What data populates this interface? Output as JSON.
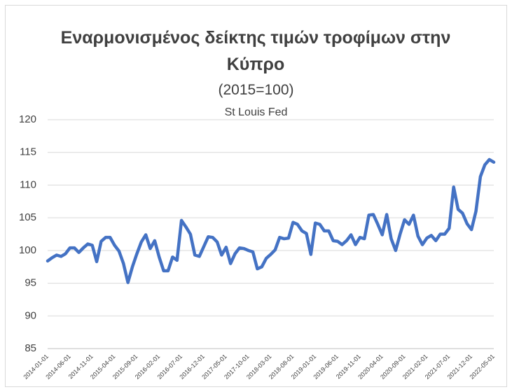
{
  "chart_data": {
    "type": "line",
    "title": "Εναρμονισμένος δείκτης τιμών τροφίμων στην Κύπρο",
    "subtitle": "(2015=100)",
    "source": "St Louis Fed",
    "categories": [
      "2014-01-01",
      null,
      null,
      null,
      null,
      "2014-06-01",
      null,
      null,
      null,
      null,
      "2014-11-01",
      null,
      null,
      null,
      null,
      "2015-04-01",
      null,
      null,
      null,
      null,
      "2015-09-01",
      null,
      null,
      null,
      null,
      "2016-02-01",
      null,
      null,
      null,
      null,
      "2016-07-01",
      null,
      null,
      null,
      null,
      "2016-12-01",
      null,
      null,
      null,
      null,
      "2017-05-01",
      null,
      null,
      null,
      null,
      "2017-10-01",
      null,
      null,
      null,
      null,
      "2018-03-01",
      null,
      null,
      null,
      null,
      "2018-08-01",
      null,
      null,
      null,
      null,
      "2019-01-01",
      null,
      null,
      null,
      null,
      "2019-06-01",
      null,
      null,
      null,
      null,
      "2019-11-01",
      null,
      null,
      null,
      null,
      "2020-04-01",
      null,
      null,
      null,
      null,
      "2020-09-01",
      null,
      null,
      null,
      null,
      "2021-02-01",
      null,
      null,
      null,
      null,
      "2021-07-01",
      null,
      null,
      null,
      null,
      "2021-12-01",
      null,
      null,
      null,
      null,
      "2022-05-01"
    ],
    "series": [
      {
        "color": "#4472c4",
        "values": [
          98.4,
          98.9,
          99.3,
          99.1,
          99.5,
          100.4,
          100.4,
          99.7,
          100.4,
          101.0,
          100.8,
          98.3,
          101.4,
          102.0,
          102.0,
          100.8,
          99.9,
          98.0,
          95.1,
          97.5,
          99.5,
          101.3,
          102.4,
          100.3,
          101.5,
          99.0,
          96.9,
          96.9,
          99.0,
          98.5,
          104.6,
          103.6,
          102.5,
          99.3,
          99.1,
          100.6,
          102.1,
          102.0,
          101.3,
          99.3,
          100.5,
          98.0,
          99.5,
          100.4,
          100.3,
          100.0,
          99.8,
          97.2,
          97.5,
          98.8,
          99.4,
          100.1,
          102.0,
          101.8,
          101.9,
          104.3,
          104.0,
          103.0,
          102.6,
          99.4,
          104.2,
          104.0,
          103.0,
          103.0,
          101.5,
          101.4,
          100.9,
          101.5,
          102.4,
          100.9,
          102.0,
          101.8,
          105.4,
          105.5,
          104.0,
          102.4,
          105.5,
          101.8,
          100.0,
          102.5,
          104.7,
          104.0,
          105.4,
          102.2,
          100.9,
          101.9,
          102.3,
          101.5,
          102.5,
          102.5,
          103.4,
          109.7,
          106.3,
          105.7,
          104.1,
          103.2,
          106.0,
          111.3,
          113.1,
          113.9,
          113.5
        ]
      }
    ],
    "ylim": [
      85,
      120
    ],
    "yticks": [
      85,
      90,
      95,
      100,
      105,
      110,
      115,
      120
    ],
    "grid": true
  }
}
